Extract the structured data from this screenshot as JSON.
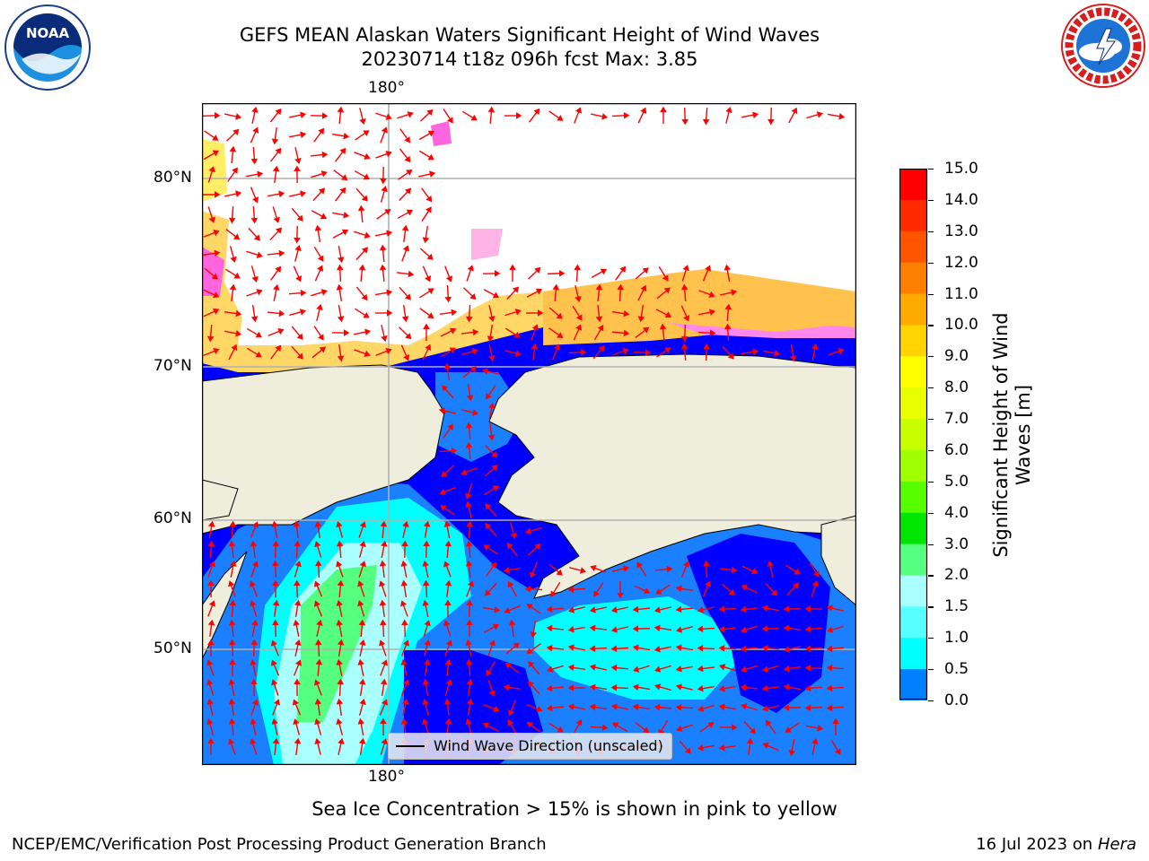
{
  "title": {
    "line1": "GEFS MEAN Alaskan Waters Significant Height of Wind Waves",
    "line2": "20230714 t18z 096h fcst   Max: 3.85"
  },
  "logos": {
    "left": {
      "icon": "noaa-logo-icon",
      "text": "NOAA"
    },
    "right": {
      "icon": "nws-logo-icon",
      "text": "NATIONAL WEATHER SERVICE"
    }
  },
  "map": {
    "lon_labels": {
      "top": "180°",
      "bottom": "180°"
    },
    "lat_labels": [
      "80°N",
      "70°N",
      "60°N",
      "50°N"
    ],
    "colors": {
      "land": "#efeddb",
      "ocean_low": "#0000ff",
      "ice": "#ffffff"
    }
  },
  "legend": {
    "label": "Wind Wave Direction (unscaled)"
  },
  "colorbar": {
    "title": "Significant Height of Wind Waves [m]",
    "ticks": [
      "15.0",
      "14.0",
      "13.0",
      "12.0",
      "11.0",
      "10.0",
      "9.0",
      "8.0",
      "7.0",
      "6.0",
      "5.0",
      "4.0",
      "3.0",
      "2.0",
      "1.5",
      "1.0",
      "0.5",
      "0.0"
    ],
    "colors": [
      "#ff0000",
      "#ff2a00",
      "#ff5500",
      "#ff8000",
      "#ffaa00",
      "#ffd400",
      "#ffff00",
      "#e8ff00",
      "#c8ff00",
      "#a0ff00",
      "#55ff00",
      "#00e600",
      "#55ff80",
      "#aaffff",
      "#55ffff",
      "#00ffff",
      "#0080ff",
      "#0000ff"
    ]
  },
  "caption": "Sea Ice Concentration > 15% is shown in pink to yellow",
  "footer": {
    "left": "NCEP/EMC/Verification Post Processing Product Generation Branch",
    "right_date": "16 Jul 2023 on ",
    "right_host": "Hera"
  }
}
